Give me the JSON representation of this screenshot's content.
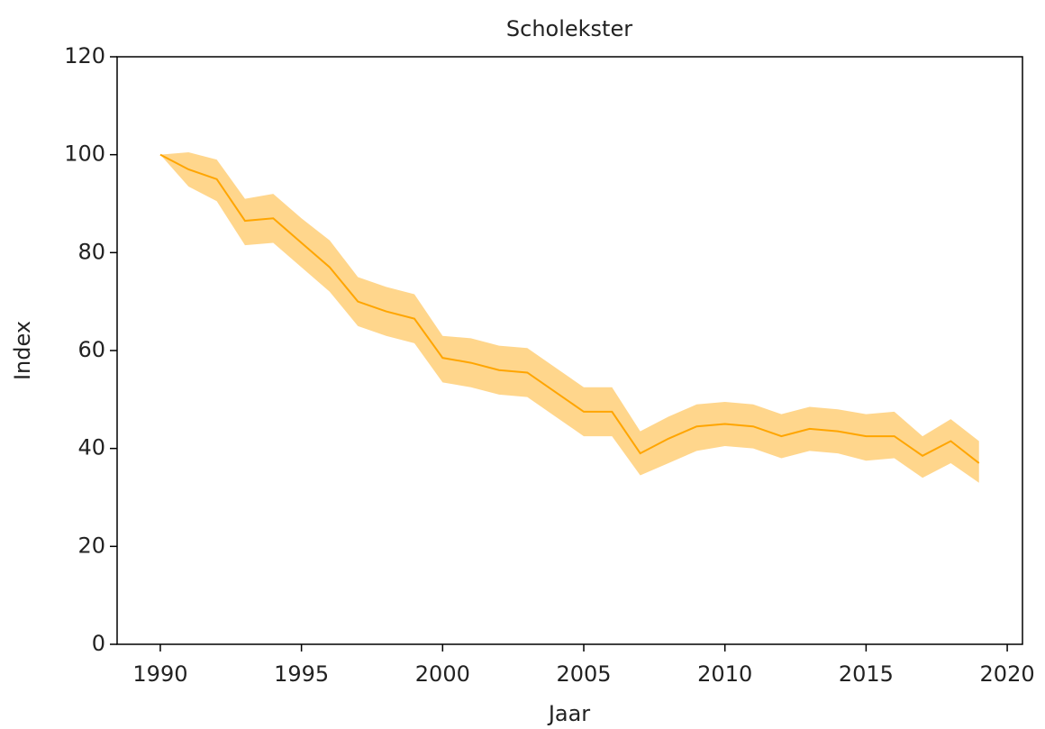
{
  "chart_data": {
    "type": "line",
    "title": "Scholekster",
    "xlabel": "Jaar",
    "ylabel": "Index",
    "x": [
      1990,
      1991,
      1992,
      1993,
      1994,
      1995,
      1996,
      1997,
      1998,
      1999,
      2000,
      2001,
      2002,
      2003,
      2004,
      2005,
      2006,
      2007,
      2008,
      2009,
      2010,
      2011,
      2012,
      2013,
      2014,
      2015,
      2016,
      2017,
      2018,
      2019
    ],
    "values": [
      100,
      97,
      95,
      86.5,
      87,
      82,
      77,
      70,
      68,
      66.5,
      58.5,
      57.5,
      56,
      55.5,
      51.5,
      47.5,
      47.5,
      39,
      42,
      44.5,
      45,
      44.5,
      42.5,
      44,
      43.5,
      42.5,
      42.5,
      38.5,
      41.5,
      37
    ],
    "upper": [
      100,
      100.5,
      99,
      91,
      92,
      87,
      82.5,
      75,
      73,
      71.5,
      63,
      62.5,
      61,
      60.5,
      56.5,
      52.5,
      52.5,
      43.5,
      46.5,
      49,
      49.5,
      49,
      47,
      48.5,
      48,
      47,
      47.5,
      42.5,
      46,
      41.5
    ],
    "lower": [
      100,
      93.5,
      90.5,
      81.5,
      82,
      77,
      72,
      65,
      63,
      61.5,
      53.5,
      52.5,
      51,
      50.5,
      46.5,
      42.5,
      42.5,
      34.5,
      37,
      39.5,
      40.5,
      40,
      38,
      39.5,
      39,
      37.5,
      38,
      34,
      37,
      33
    ],
    "color": "#ffa500",
    "band_color": "#ffa500",
    "xlim": [
      1988.47,
      2020.54
    ],
    "ylim": [
      0,
      120
    ],
    "xticks": [
      1990,
      1995,
      2000,
      2005,
      2010,
      2015,
      2020
    ],
    "yticks": [
      0,
      20,
      40,
      60,
      80,
      100,
      120
    ]
  }
}
